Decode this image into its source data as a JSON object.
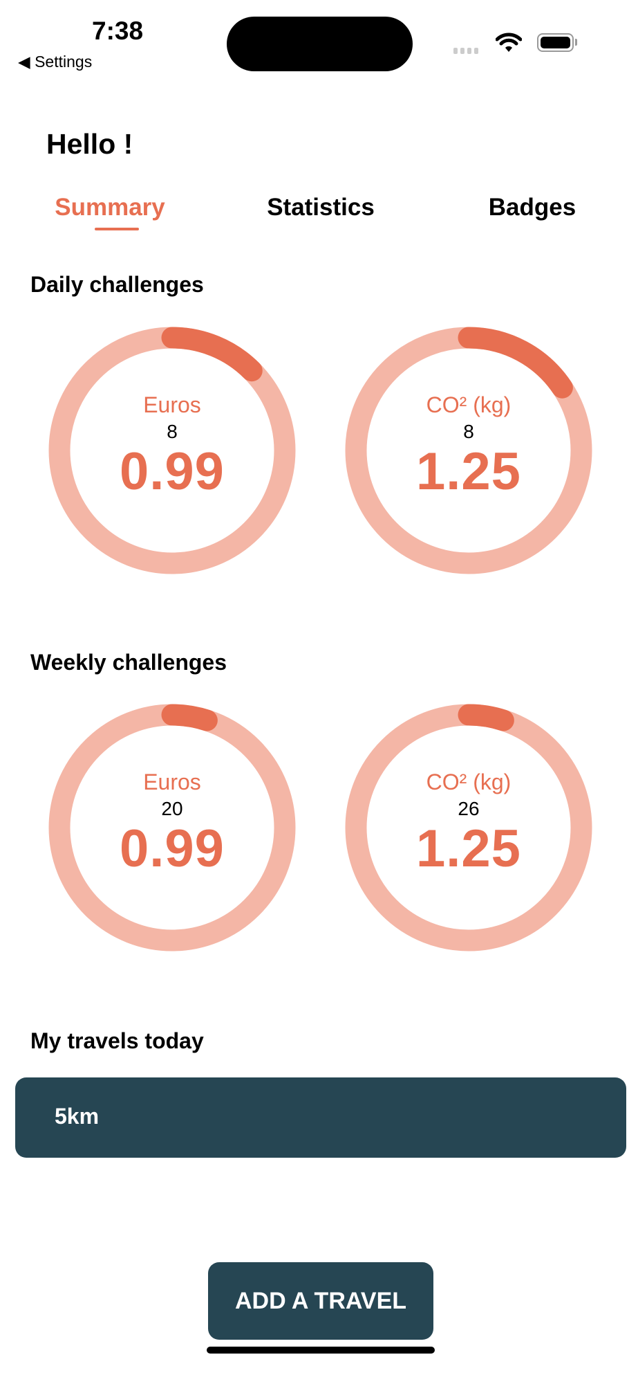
{
  "status_bar": {
    "time": "7:38",
    "back_label": "Settings"
  },
  "greeting": "Hello !",
  "tabs": [
    {
      "label": "Summary",
      "active": true
    },
    {
      "label": "Statistics",
      "active": false
    },
    {
      "label": "Badges",
      "active": false
    }
  ],
  "colors": {
    "accent": "#e76f51",
    "track": "#f4b6a6",
    "dark": "#264653"
  },
  "daily": {
    "title": "Daily challenges",
    "rings": [
      {
        "label": "Euros",
        "count": "8",
        "value": "0.99",
        "progress": 0.125
      },
      {
        "label": "CO² (kg)",
        "count": "8",
        "value": "1.25",
        "progress": 0.156
      }
    ]
  },
  "weekly": {
    "title": "Weekly challenges",
    "rings": [
      {
        "label": "Euros",
        "count": "20",
        "value": "0.99",
        "progress": 0.05
      },
      {
        "label": "CO² (kg)",
        "count": "26",
        "value": "1.25",
        "progress": 0.05
      }
    ]
  },
  "travels": {
    "title": "My travels today",
    "items": [
      {
        "distance": "5km"
      }
    ]
  },
  "add_button": "ADD A TRAVEL"
}
